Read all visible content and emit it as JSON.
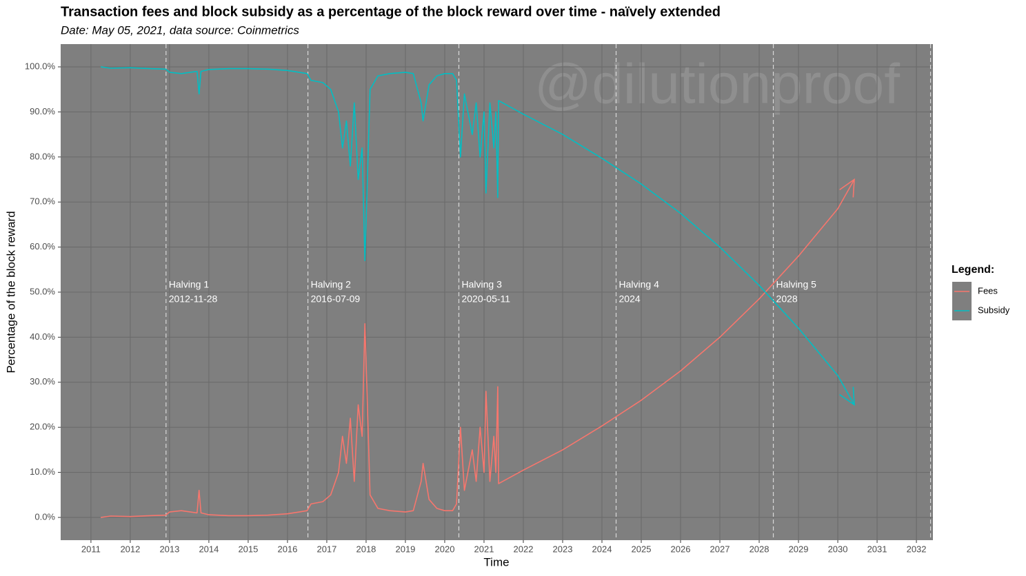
{
  "chart_data": {
    "type": "line",
    "title": "Transaction fees and block subsidy as a percentage of the block reward over time - naïvely extended",
    "subtitle": "Date: May 05, 2021, data source: Coinmetrics",
    "x_label": "Time",
    "y_label": "Percentage of the block reward",
    "watermark": "@dilutionproof",
    "legend_title": "Legend:",
    "legend_position": "right",
    "grid": true,
    "x": [
      2011.25,
      2011.5,
      2012,
      2012.5,
      2012.9,
      2013,
      2013.3,
      2013.7,
      2013.75,
      2013.8,
      2014,
      2014.5,
      2015,
      2015.5,
      2016,
      2016.3,
      2016.5,
      2016.6,
      2016.9,
      2017.1,
      2017.3,
      2017.4,
      2017.5,
      2017.6,
      2017.7,
      2017.8,
      2017.9,
      2017.97,
      2018.05,
      2018.1,
      2018.3,
      2018.6,
      2019,
      2019.2,
      2019.4,
      2019.45,
      2019.6,
      2019.8,
      2020,
      2020.2,
      2020.3,
      2020.4,
      2020.5,
      2020.7,
      2020.8,
      2020.9,
      2021,
      2021.05,
      2021.15,
      2021.25,
      2021.3,
      2021.35,
      2021.37,
      2022,
      2023,
      2024,
      2025,
      2026,
      2027,
      2028,
      2029,
      2030,
      2030.42
    ],
    "series": [
      {
        "name": "Fees",
        "color": "#F8766D",
        "values": [
          0,
          0.3,
          0.2,
          0.4,
          0.5,
          1.2,
          1.5,
          1.0,
          6,
          1.0,
          0.6,
          0.4,
          0.4,
          0.5,
          0.8,
          1.2,
          1.5,
          3,
          3.5,
          5,
          10,
          18,
          12,
          22,
          8,
          25,
          18,
          43,
          20,
          5,
          2,
          1.5,
          1.2,
          1.5,
          8,
          12,
          4,
          2,
          1.5,
          1.5,
          3,
          20,
          6,
          15,
          8,
          20,
          10,
          28,
          8,
          18,
          10,
          29,
          7.5,
          10.5,
          15,
          20.3,
          26,
          32.5,
          40,
          48.5,
          58,
          68.5,
          75
        ]
      },
      {
        "name": "Subsidy",
        "color": "#00BFC4",
        "values": [
          100,
          99.7,
          99.8,
          99.6,
          99.5,
          98.8,
          98.5,
          99,
          94,
          99,
          99.4,
          99.6,
          99.6,
          99.5,
          99.2,
          98.8,
          98.5,
          97,
          96.5,
          95,
          90,
          82,
          88,
          78,
          92,
          75,
          82,
          57,
          80,
          95,
          98,
          98.5,
          98.8,
          98.5,
          92,
          88,
          96,
          98,
          98.5,
          98.5,
          97,
          80,
          94,
          85,
          92,
          80,
          90,
          72,
          92,
          82,
          90,
          71,
          92.5,
          89.5,
          85,
          79.7,
          74,
          67.5,
          60,
          51.5,
          42,
          31.5,
          25
        ]
      }
    ],
    "xlim": [
      2010.23,
      2032.42
    ],
    "xticks": [
      2011,
      2012,
      2013,
      2014,
      2015,
      2016,
      2017,
      2018,
      2019,
      2020,
      2021,
      2022,
      2023,
      2024,
      2025,
      2026,
      2027,
      2028,
      2029,
      2030,
      2031,
      2032
    ],
    "ylim": [
      -5.05,
      105.05
    ],
    "yticks": [
      {
        "value": 0,
        "label": "0.0%"
      },
      {
        "value": 10,
        "label": "10.0%"
      },
      {
        "value": 20,
        "label": "20.0%"
      },
      {
        "value": 30,
        "label": "30.0%"
      },
      {
        "value": 40,
        "label": "40.0%"
      },
      {
        "value": 50,
        "label": "50.0%"
      },
      {
        "value": 60,
        "label": "60.0%"
      },
      {
        "value": 70,
        "label": "70.0%"
      },
      {
        "value": 80,
        "label": "80.0%"
      },
      {
        "value": 90,
        "label": "90.0%"
      },
      {
        "value": 100,
        "label": "100.0%"
      }
    ],
    "vlines": [
      2012.91,
      2016.52,
      2020.36,
      2024.36,
      2028.36,
      2032.36
    ],
    "annotations": [
      {
        "x": 2012.91,
        "label": "Halving 1",
        "date": "2012-11-28"
      },
      {
        "x": 2016.52,
        "label": "Halving 2",
        "date": "2016-07-09"
      },
      {
        "x": 2020.36,
        "label": "Halving 3",
        "date": "2020-05-11"
      },
      {
        "x": 2024.36,
        "label": "Halving 4",
        "date": "2024"
      },
      {
        "x": 2028.36,
        "label": "Halving 5",
        "date": "2028"
      }
    ]
  }
}
